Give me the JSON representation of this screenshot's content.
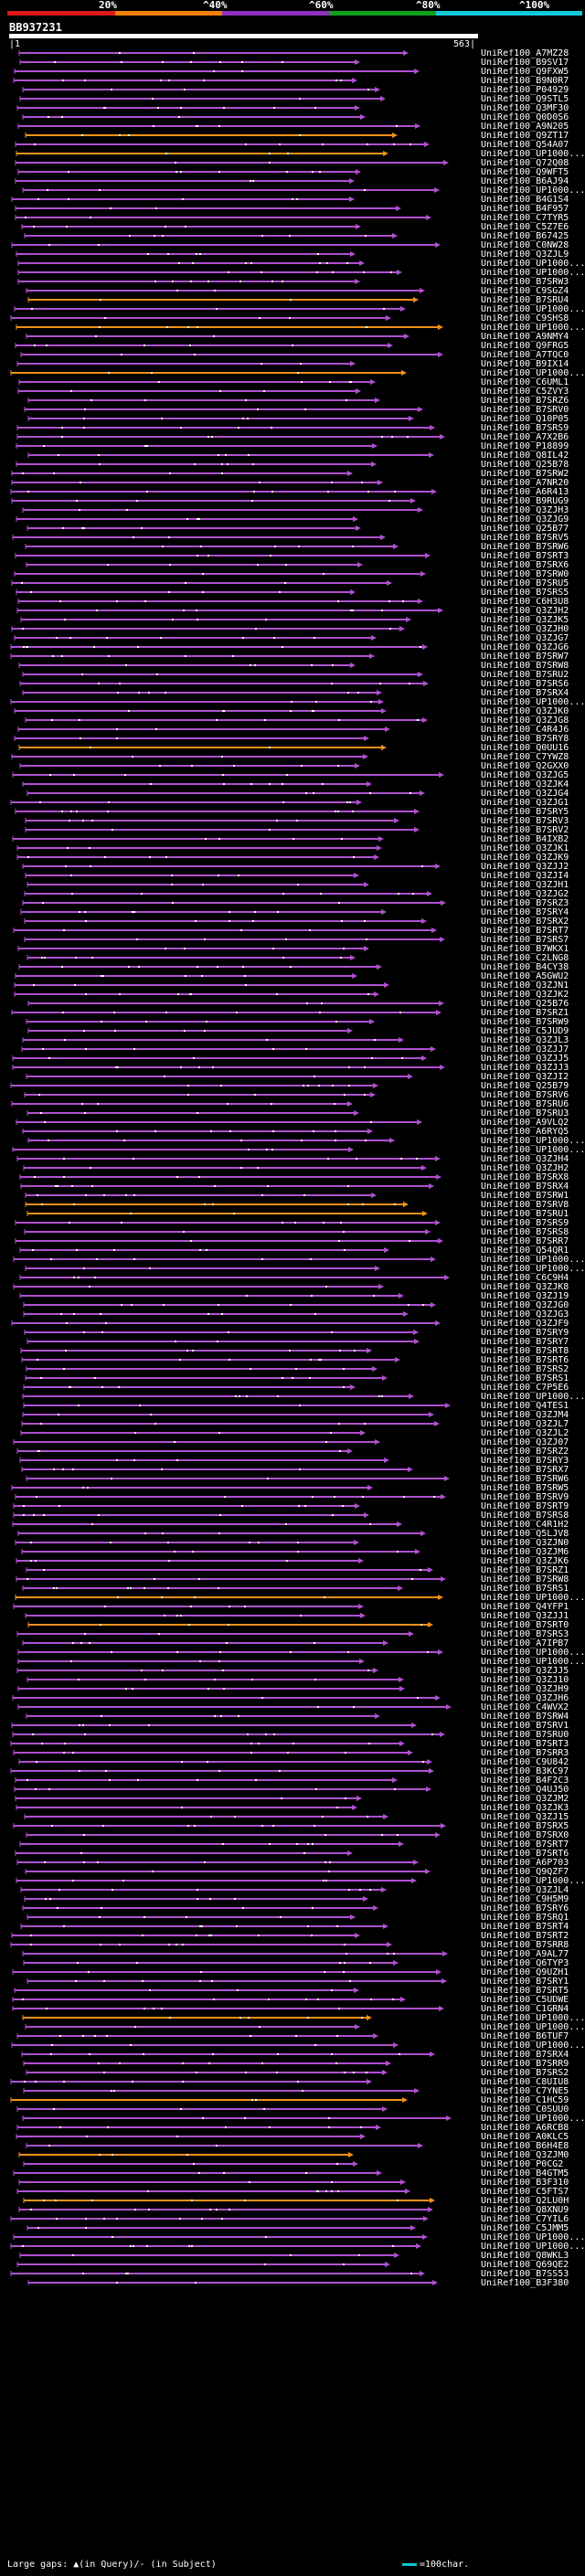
{
  "identity_scale": {
    "labels": [
      "20%",
      "^40%",
      "^60%",
      "^80%",
      "^100%"
    ],
    "colors": [
      "#e01818",
      "#f08000",
      "#9030c0",
      "#10a020",
      "#10c8d8"
    ]
  },
  "query": {
    "id": "BB937231",
    "start_label": "|1",
    "end_label": "563|"
  },
  "colors": {
    "hit_purple": "#b050d0",
    "hit_orange": "#f0901a",
    "mismatch_dot": "#ffffff",
    "background": "#000000"
  },
  "hits": [
    "UniRef100_A7MZ28",
    "UniRef100_B9SV17",
    "UniRef100_Q9FXW5",
    "UniRef100_B9N0R7",
    "UniRef100_P04929",
    "UniRef100_Q9STL5",
    "UniRef100_Q3MF30",
    "UniRef100_Q0D0S6",
    "UniRef100_A9N205",
    "UniRef100_Q9ZT17",
    "UniRef100_Q54A07",
    "UniRef100_UP1000...",
    "UniRef100_Q72Q08",
    "UniRef100_Q9WFT5",
    "UniRef100_B6AJ94",
    "UniRef100_UP1000...",
    "UniRef100_B4G1S4",
    "UniRef100_B4F957",
    "UniRef100_C7TYR5",
    "UniRef100_C5Z7E6",
    "UniRef100_B67425",
    "UniRef100_C0NW28",
    "UniRef100_Q3ZJL9",
    "UniRef100_UP1000...",
    "UniRef100_UP1000...",
    "UniRef100_B7SRW3",
    "UniRef100_C9SGZ4",
    "UniRef100_B7SRU4",
    "UniRef100_UP1000...",
    "UniRef100_C9SHS8",
    "UniRef100_UP1000...",
    "UniRef100_A9NMY4",
    "UniRef100_Q9FRG5",
    "UniRef100_A7TQC0",
    "UniRef100_B9IX14",
    "UniRef100_UP1000...",
    "UniRef100_C6UML1",
    "UniRef100_C5ZVY3",
    "UniRef100_B7SRZ6",
    "UniRef100_B7SRV0",
    "UniRef100_Q10P05",
    "UniRef100_B7SRS9",
    "UniRef100_A7X2B6",
    "UniRef100_P18899",
    "UniRef100_Q8IL42",
    "UniRef100_Q25B78",
    "UniRef100_B7SRW2",
    "UniRef100_A7NR20",
    "UniRef100_A6R413",
    "UniRef100_B9RUG9",
    "UniRef100_Q3ZJH3",
    "UniRef100_Q3ZJG9",
    "UniRef100_Q25B77",
    "UniRef100_B7SRV5",
    "UniRef100_B7SRW6",
    "UniRef100_B7SRT3",
    "UniRef100_B7SRX6",
    "UniRef100_B7SRW0",
    "UniRef100_B7SRU5",
    "UniRef100_B7SRS5",
    "UniRef100_C6H3U8",
    "UniRef100_Q3ZJH2",
    "UniRef100_Q3ZJK5",
    "UniRef100_Q3ZJH0",
    "UniRef100_Q3ZJG7",
    "UniRef100_Q3ZJG6",
    "UniRef100_B7SRW7",
    "UniRef100_B7SRW8",
    "UniRef100_B7SRU2",
    "UniRef100_B7SRS6",
    "UniRef100_B7SRX4",
    "UniRef100_UP1000...",
    "UniRef100_Q3ZJK0",
    "UniRef100_Q3ZJG8",
    "UniRef100_C4R4J6",
    "UniRef100_B7SRY8",
    "UniRef100_Q0UU16",
    "UniRef100_C7YWZ8",
    "UniRef100_Q2GXX0",
    "UniRef100_Q3ZJG5",
    "UniRef100_Q3ZJK4",
    "UniRef100_Q3ZJG4",
    "UniRef100_Q3ZJG1",
    "UniRef100_B7SRY5",
    "UniRef100_B7SRV3",
    "UniRef100_B7SRV2",
    "UniRef100_B4IXB2",
    "UniRef100_Q3ZJK1",
    "UniRef100_Q3ZJK9",
    "UniRef100_Q3ZJJ2",
    "UniRef100_Q3ZJI4",
    "UniRef100_Q3ZJH1",
    "UniRef100_Q3ZJG2",
    "UniRef100_B7SRZ3",
    "UniRef100_B7SRY4",
    "UniRef100_B7SRX2",
    "UniRef100_B7SRT7",
    "UniRef100_B7SRS7",
    "UniRef100_B7WKX1",
    "UniRef100_C2LNG8",
    "UniRef100_B4CY38",
    "UniRef100_A5GWU2",
    "UniRef100_Q3ZJN1",
    "UniRef100_Q3ZJK2",
    "UniRef100_Q25B76",
    "UniRef100_B7SRZ1",
    "UniRef100_B7SRW9",
    "UniRef100_C5JUD9",
    "UniRef100_Q3ZJL3",
    "UniRef100_Q3ZJJ7",
    "UniRef100_Q3ZJJ5",
    "UniRef100_Q3ZJJ3",
    "UniRef100_Q3ZJI2",
    "UniRef100_Q25B79",
    "UniRef100_B7SRV6",
    "UniRef100_B7SRU6",
    "UniRef100_B7SRU3",
    "UniRef100_A9VLQ2",
    "UniRef100_A6RYQ5",
    "UniRef100_UP1000...",
    "UniRef100_UP1000...",
    "UniRef100_Q3ZJH4",
    "UniRef100_Q3ZJH2",
    "UniRef100_B7SRX8",
    "UniRef100_B7SRX4",
    "UniRef100_B7SRW1",
    "UniRef100_B7SRV8",
    "UniRef100_B7SRU1",
    "UniRef100_B7SRS9",
    "UniRef100_B7SRS8",
    "UniRef100_B7SRR7",
    "UniRef100_Q54QR1",
    "UniRef100_UP1000...",
    "UniRef100_UP1000...",
    "UniRef100_C6C9H4",
    "UniRef100_Q3ZJK8",
    "UniRef100_Q3ZJ19",
    "UniRef100_Q3ZJG0",
    "UniRef100_Q3ZJG3",
    "UniRef100_Q3ZJF9",
    "UniRef100_B7SRY9",
    "UniRef100_B7SRY7",
    "UniRef100_B7SRT8",
    "UniRef100_B7SRT6",
    "UniRef100_B7SRS2",
    "UniRef100_B7SRS1",
    "UniRef100_C7P5E6",
    "UniRef100_UP1000...",
    "UniRef100_Q4TES1",
    "UniRef100_Q3ZJM4",
    "UniRef100_Q3ZJL7",
    "UniRef100_Q3ZJL2",
    "UniRef100_Q3ZJ07",
    "UniRef100_B7SRZ2",
    "UniRef100_B7SRY3",
    "UniRef100_B7SRX7",
    "UniRef100_B7SRW6",
    "UniRef100_B7SRW5",
    "UniRef100_B7SRV9",
    "UniRef100_B7SRT9",
    "UniRef100_B7SRS8",
    "UniRef100_C4R1H2",
    "UniRef100_Q5LJV8",
    "UniRef100_Q3ZJN0",
    "UniRef100_Q3ZJM6",
    "UniRef100_Q3ZJK6",
    "UniRef100_B7SRZ1",
    "UniRef100_B7SRW8",
    "UniRef100_B7SRS1",
    "UniRef100_UP1000...",
    "UniRef100_Q4YFP1",
    "UniRef100_Q3ZJJ1",
    "UniRef100_B7SRT0",
    "UniRef100_B7SRS3",
    "UniRef100_A7IPB7",
    "UniRef100_UP1000...",
    "UniRef100_UP1000...",
    "UniRef100_Q3ZJJ5",
    "UniRef100_Q3ZJ10",
    "UniRef100_Q3ZJH9",
    "UniRef100_Q3ZJH6",
    "UniRef100_C4WVX2",
    "UniRef100_B7SRW4",
    "UniRef100_B7SRV1",
    "UniRef100_B7SRU0",
    "UniRef100_B7SRT3",
    "UniRef100_B7SRR3",
    "UniRef100_C9U842",
    "UniRef100_B3KC97",
    "UniRef100_B4F2C3",
    "UniRef100_Q4UJ50",
    "UniRef100_Q3ZJM2",
    "UniRef100_Q3ZJK3",
    "UniRef100_Q3ZJ15",
    "UniRef100_B7SRX5",
    "UniRef100_B7SRX0",
    "UniRef100_B7SRT7",
    "UniRef100_B7SRT6",
    "UniRef100_A6P703",
    "UniRef100_Q9QZF7",
    "UniRef100_UP1000...",
    "UniRef100_Q3ZJL4",
    "UniRef100_C9H5M9",
    "UniRef100_B7SRY6",
    "UniRef100_B7SRQ1",
    "UniRef100_B7SRT4",
    "UniRef100_B7SRT2",
    "UniRef100_B7SRR8",
    "UniRef100_A9AL77",
    "UniRef100_Q6TYP3",
    "UniRef100_Q9UZH1",
    "UniRef100_B7SRY1",
    "UniRef100_B7SRT5",
    "UniRef100_C5UDWE",
    "UniRef100_C1GRN4",
    "UniRef100_UP1000...",
    "UniRef100_UP1000...",
    "UniRef100_B6TUF7",
    "UniRef100_UP1000...",
    "UniRef100_B7SRX4",
    "UniRef100_B7SRR9",
    "UniRef100_B7SRS2",
    "UniRef100_C8UIU8",
    "UniRef100_C7YNE5",
    "UniRef100_C1HC59",
    "UniRef100_C0SUU0",
    "UniRef100_UP1000...",
    "UniRef100_A6RCB8",
    "UniRef100_A0KLC5",
    "UniRef100_B6H4E8",
    "UniRef100_Q3ZJM0",
    "UniRef100_P0CG2",
    "UniRef100_B4GTM5",
    "UniRef100_B3F310",
    "UniRef100_C5FTS7",
    "UniRef100_Q2LU0H",
    "UniRef100_Q8XNU9",
    "UniRef100_C7YIL6",
    "UniRef100_C5JMM5",
    "UniRef100_UP1000...",
    "UniRef100_UP1000...",
    "UniRef100_Q8WKL3",
    "UniRef100_Q69QE2",
    "UniRef100_B7SS53",
    "UniRef100_B3F380"
  ],
  "legend": {
    "gaps_text": "Large gaps: ▲(in Query)/- (in Subject)",
    "scale_text": "=100char."
  }
}
